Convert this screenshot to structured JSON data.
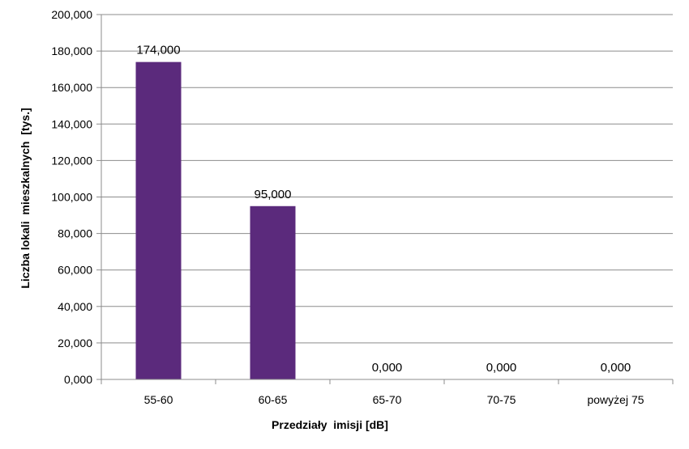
{
  "chart_data": {
    "type": "bar",
    "categories": [
      "55-60",
      "60-65",
      "65-70",
      "70-75",
      "powyżej 75"
    ],
    "values": [
      174000,
      95000,
      0,
      0,
      0
    ],
    "data_labels": [
      "174,000",
      "95,000",
      "0,000",
      "0,000",
      "0,000"
    ],
    "ylim": [
      0,
      200000
    ],
    "yticks": [
      0,
      20000,
      40000,
      60000,
      80000,
      100000,
      120000,
      140000,
      160000,
      180000,
      200000
    ],
    "ytick_labels": [
      "0,000",
      "20,000",
      "40,000",
      "60,000",
      "80,000",
      "100,000",
      "120,000",
      "140,000",
      "160,000",
      "180,000",
      "200,000"
    ],
    "xlabel": "Przedziały  imisji [dB]",
    "ylabel": "Liczba lokali  mieszkalnych  [tys.]",
    "bar_color": "#5b2a7c",
    "gridline_color": "#8c8c8c",
    "grid": true,
    "legend": "none"
  }
}
